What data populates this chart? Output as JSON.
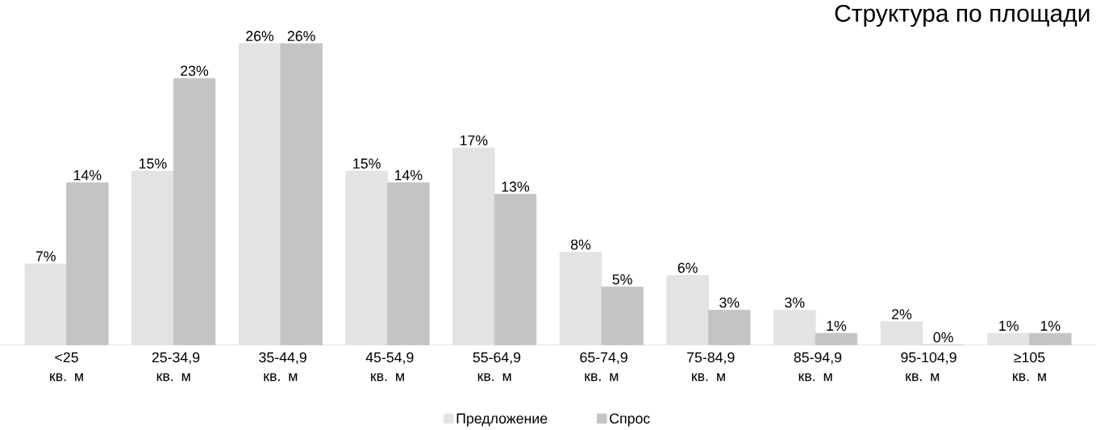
{
  "chart_data": {
    "type": "bar",
    "title": "Структура по площади",
    "categories": [
      "<25 кв. м",
      "25-34,9 кв. м",
      "35-44,9 кв. м",
      "45-54,9 кв. м",
      "55-64,9 кв. м",
      "65-74,9 кв. м",
      "75-84,9 кв. м",
      "85-94,9 кв. м",
      "95-104,9 кв. м",
      "≥105 кв. м"
    ],
    "series": [
      {
        "name": "Предложение",
        "color": "#e3e3e3",
        "values": [
          7,
          15,
          26,
          15,
          17,
          8,
          6,
          3,
          2,
          1
        ],
        "value_labels": [
          "7%",
          "15%",
          "26%",
          "15%",
          "17%",
          "8%",
          "6%",
          "3%",
          "2%",
          "1%"
        ]
      },
      {
        "name": "Спрос",
        "color": "#c4c4c4",
        "values": [
          14,
          23,
          26,
          14,
          13,
          5,
          3,
          1,
          0,
          1
        ],
        "value_labels": [
          "14%",
          "23%",
          "26%",
          "14%",
          "13%",
          "5%",
          "3%",
          "1%",
          "0%",
          "1%"
        ]
      }
    ],
    "legend": "bottom",
    "grid": false
  }
}
